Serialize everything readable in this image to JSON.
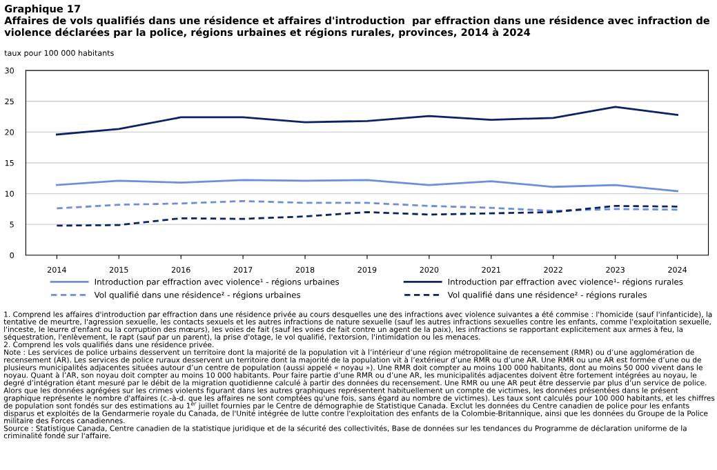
{
  "chart_data": {
    "type": "line",
    "title": "Graphique 17\nAffaires de vols qualifiés dans une résidence et affaires d'introduction  par effraction dans une résidence avec infraction de violence déclarées par la police, régions urbaines et régions rurales, provinces, 2014 à 2024",
    "ylabel": "taux pour 100 000 habitants",
    "categories": [
      "2014",
      "2015",
      "2016",
      "2017",
      "2018",
      "2019",
      "2020",
      "2021",
      "2022",
      "2023",
      "2024"
    ],
    "series": [
      {
        "name": "Introduction par effraction avec violence¹ - régions urbaines",
        "color": "#6a8fdc",
        "line_style": "solid",
        "values": [
          11.4,
          12.1,
          11.8,
          12.2,
          12.1,
          12.2,
          11.4,
          12.0,
          11.1,
          11.4,
          10.4
        ]
      },
      {
        "name": "Introduction par effraction avec violence¹- régions rurales",
        "color": "#0b2265",
        "line_style": "solid",
        "values": [
          19.6,
          20.5,
          22.4,
          22.4,
          21.6,
          21.8,
          22.6,
          22.0,
          22.3,
          24.1,
          22.8
        ]
      },
      {
        "name": "Vol qualifié dans une résidence² - régions urbaines",
        "color": "#6a8fdc",
        "line_style": "dashed",
        "values": [
          7.6,
          8.2,
          8.4,
          8.8,
          8.5,
          8.5,
          8.0,
          7.7,
          7.2,
          7.5,
          7.4
        ]
      },
      {
        "name": "Vol qualifié dans une résidence² - régions rurales",
        "color": "#0b2265",
        "line_style": "dashed",
        "values": [
          4.8,
          4.9,
          6.0,
          5.9,
          6.3,
          7.0,
          6.6,
          6.8,
          7.0,
          8.0,
          7.9
        ]
      }
    ],
    "ylim": [
      0,
      30
    ],
    "yticks": [
      0,
      5,
      10,
      15,
      20,
      25,
      30
    ],
    "grid": "y",
    "legend": "bottom",
    "marker": "none",
    "annotations": [
      "1. Comprend les affaires d'introduction par effraction dans une résidence privée au cours desquelles une des infractions avec violence suivantes a été commise : l'homicide (sauf l'infanticide), la tentative de meurtre, l'agression sexuelle, les contacts sexuels et les autres infractions de nature sexuelle (sauf les autres infractions sexuelles contre les enfants, comme l'exploitation sexuelle, l'inceste, le leurre d'enfant ou la corruption des mœurs), les voies de fait (sauf les voies de fait contre un agent de la paix), les infractions se rapportant explicitement aux armes à feu, la séquestration, l'enlèvement, le rapt (sauf par un parent), la prise d'otage, le vol qualifié, l'extorsion, l'intimidation ou les menaces.",
      "2. Comprend les vols qualifiés dans une résidence privée.",
      "Note : Les services de police urbains desservent un territoire dont la majorité de la population vit à l’intérieur d’une région métropolitaine de recensement (RMR) ou d’une agglomération de recensement (AR). Les services de police ruraux desservent un territoire dont la majorité de la population vit à l’extérieur d’une RMR ou d’une AR. Une RMR ou une AR est formée d’une ou de plusieurs municipalités adjacentes situées autour d’un centre de population (aussi appelé « noyau »). Une RMR doit compter au moins 100 000 habitants, dont au moins 50 000 vivent dans le noyau. Quant à l’AR, son noyau doit compter au moins 10 000 habitants. Pour faire partie d’une RMR ou d’une AR, les municipalités adjacentes doivent être fortement intégrées au noyau, le degré d’intégration étant mesuré par le débit de la migration quotidienne calculé à partir des données du recensement. Une RMR ou une AR peut être desservie par plus d’un service de police. Alors que les données agrégées sur les crimes violents figurant dans les autres graphiques représentent habituellement un compte de victimes, les données présentées dans le présent graphique représente le nombre d'affaires (c.-à-d. que les affaires ne sont comptées qu'une fois, sans égard au nombre de victimes). Les taux sont calculés pour 100 000 habitants, et les chiffres de population sont fondés sur des estimations au 1$^{er}$ juillet fournies par le Centre de démographie de Statistique Canada. Exclut les données du Centre canadien de police pour les enfants disparus et exploités de la Gendarmerie royale du Canada, de l'Unité intégrée de lutte contre l'exploitation des enfants de la Colombie-Britannique, ainsi que les données du Groupe de la Police militaire des Forces canadiennes.",
      "Source : Statistique Canada, Centre canadien de la statistique juridique et de la sécurité des collectivités, Base de données sur les tendances du Programme de déclaration uniforme de la criminalité fondé sur l'affaire."
    ]
  }
}
